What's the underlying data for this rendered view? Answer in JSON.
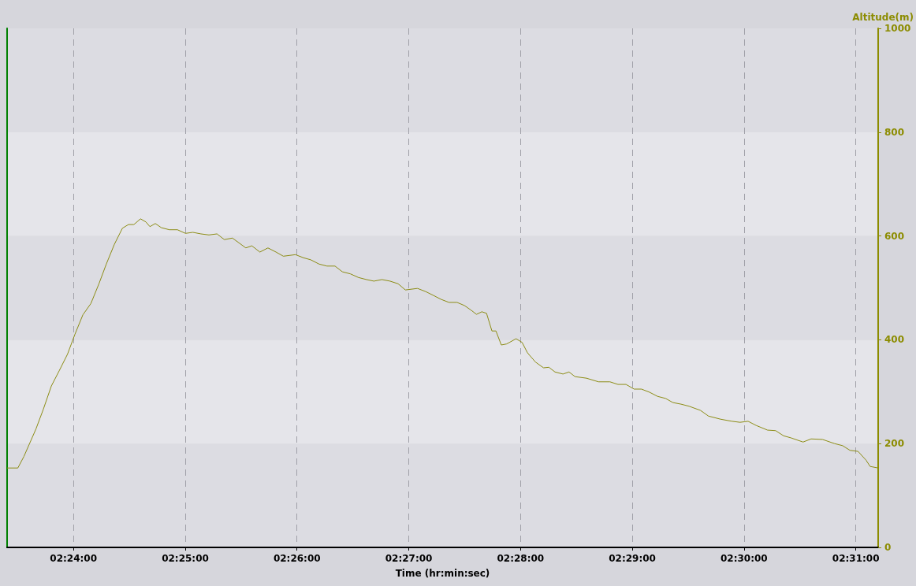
{
  "chart_data": {
    "type": "line",
    "xlabel": "Time (hr:min:sec)",
    "ylabel": "Altitude(m)",
    "x": [
      2.3901,
      2.3917,
      2.3926,
      2.3944,
      2.3955,
      2.3967,
      2.3979,
      2.3991,
      2.4002,
      2.4014,
      2.4026,
      2.4038,
      2.4049,
      2.4061,
      2.4073,
      2.4082,
      2.409,
      2.41,
      2.4108,
      2.4114,
      2.4122,
      2.4131,
      2.4143,
      2.4155,
      2.4167,
      2.4178,
      2.419,
      2.4202,
      2.4214,
      2.4225,
      2.4237,
      2.4257,
      2.4266,
      2.4278,
      2.429,
      2.4302,
      2.4313,
      2.4331,
      2.4343,
      2.4354,
      2.4366,
      2.4378,
      2.439,
      2.4401,
      2.4413,
      2.4425,
      2.4437,
      2.4448,
      2.446,
      2.4472,
      2.4484,
      2.4495,
      2.4513,
      2.4525,
      2.4536,
      2.4548,
      2.456,
      2.4572,
      2.4583,
      2.4593,
      2.4601,
      2.4609,
      2.4616,
      2.4624,
      2.463,
      2.4638,
      2.4646,
      2.466,
      2.4669,
      2.4677,
      2.4689,
      2.4701,
      2.4709,
      2.4718,
      2.473,
      2.4739,
      2.4748,
      2.4765,
      2.4783,
      2.48,
      2.4812,
      2.4824,
      2.4836,
      2.4847,
      2.4859,
      2.4871,
      2.4883,
      2.4894,
      2.4906,
      2.4918,
      2.4935,
      2.4947,
      2.4965,
      2.4982,
      2.4994,
      2.5006,
      2.5018,
      2.5035,
      2.5047,
      2.5059,
      2.507,
      2.5088,
      2.51,
      2.5117,
      2.5135,
      2.5147,
      2.5158,
      2.517,
      2.5182,
      2.5188,
      2.52
    ],
    "series": [
      {
        "color": "#8c8c14",
        "values": [
          153,
          153,
          175,
          228,
          266,
          311,
          341,
          372,
          410,
          448,
          470,
          508,
          546,
          584,
          615,
          622,
          622,
          633,
          627,
          618,
          624,
          616,
          612,
          612,
          605,
          607,
          604,
          602,
          604,
          593,
          596,
          577,
          581,
          569,
          577,
          569,
          561,
          564,
          558,
          554,
          546,
          542,
          542,
          531,
          527,
          520,
          516,
          513,
          516,
          513,
          508,
          496,
          499,
          493,
          486,
          478,
          472,
          472,
          466,
          457,
          449,
          454,
          451,
          417,
          417,
          390,
          392,
          402,
          395,
          375,
          357,
          346,
          347,
          338,
          334,
          338,
          329,
          326,
          319,
          319,
          314,
          314,
          305,
          305,
          299,
          291,
          287,
          279,
          276,
          272,
          264,
          253,
          247,
          243,
          241,
          243,
          235,
          226,
          225,
          215,
          211,
          203,
          209,
          208,
          200,
          196,
          187,
          185,
          168,
          156,
          153
        ]
      }
    ],
    "xlim": [
      2.3901,
      2.52
    ],
    "xticks": [
      {
        "value": 2.4,
        "label": "02:24:00"
      },
      {
        "value": 2.41667,
        "label": "02:25:00"
      },
      {
        "value": 2.43333,
        "label": "02:26:00"
      },
      {
        "value": 2.45,
        "label": "02:27:00"
      },
      {
        "value": 2.46667,
        "label": "02:28:00"
      },
      {
        "value": 2.48333,
        "label": "02:29:00"
      },
      {
        "value": 2.5,
        "label": "02:30:00"
      },
      {
        "value": 2.51667,
        "label": "02:31:00"
      }
    ],
    "ylim": [
      0,
      1000
    ],
    "yticks": [
      0,
      200,
      400,
      600,
      800,
      1000
    ],
    "grid": "x",
    "marker": "none",
    "line_style": "solid"
  }
}
